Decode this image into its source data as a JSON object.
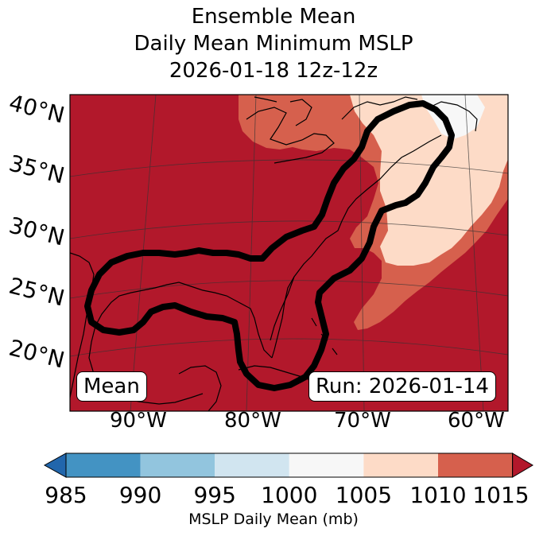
{
  "title": {
    "line1": "Ensemble Mean",
    "line2": "Daily Mean Minimum MSLP",
    "line3": "2026-01-18 12z-12z"
  },
  "map": {
    "lat_labels": [
      "40°N",
      "35°N",
      "30°N",
      "25°N",
      "20°N"
    ],
    "lon_labels": [
      "90°W",
      "80°W",
      "70°W",
      "60°W"
    ],
    "box_left": "Mean",
    "box_right": "Run: 2026-01-14",
    "colors": {
      "dark_red": "#b2182b",
      "red": "#d6604d",
      "peach": "#fddbc7",
      "white": "#f7f7f7",
      "contour": "#000000"
    }
  },
  "colorbar": {
    "ticks": [
      "985",
      "990",
      "995",
      "1000",
      "1005",
      "1010",
      "1015"
    ],
    "label": "MSLP Daily Mean (mb)",
    "colors": [
      "#2166ac",
      "#4393c3",
      "#92c5de",
      "#d1e5f0",
      "#f7f7f7",
      "#fddbc7",
      "#d6604d",
      "#b2182b"
    ]
  }
}
